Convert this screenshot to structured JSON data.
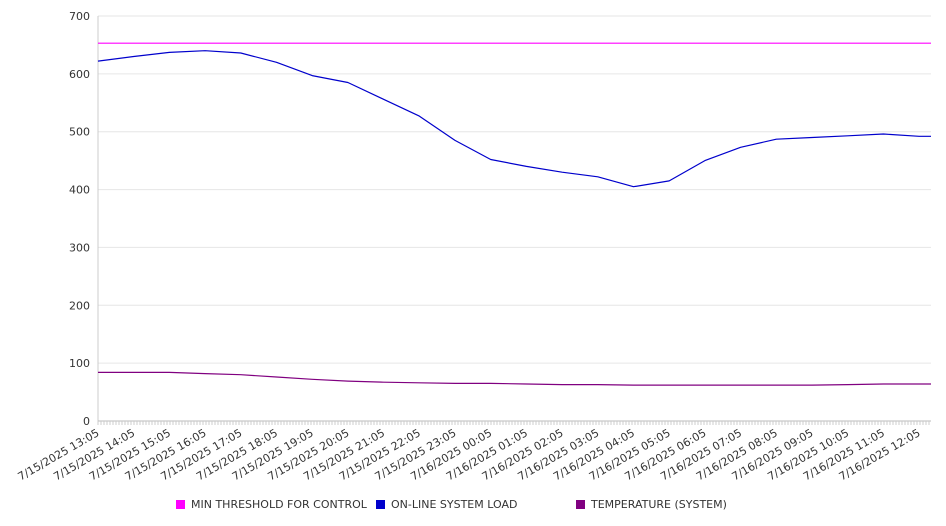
{
  "chart_data": {
    "type": "line",
    "title": "",
    "xlabel": "",
    "ylabel": "",
    "ylim": [
      0,
      700
    ],
    "yticks": [
      0,
      100,
      200,
      300,
      400,
      500,
      600,
      700
    ],
    "grid": true,
    "legend_position": "bottom",
    "categories": [
      "7/15/2025 13:05",
      "7/15/2025 14:05",
      "7/15/2025 15:05",
      "7/15/2025 16:05",
      "7/15/2025 17:05",
      "7/15/2025 18:05",
      "7/15/2025 19:05",
      "7/15/2025 20:05",
      "7/15/2025 21:05",
      "7/15/2025 22:05",
      "7/15/2025 23:05",
      "7/16/2025 00:05",
      "7/16/2025 01:05",
      "7/16/2025 02:05",
      "7/16/2025 03:05",
      "7/16/2025 04:05",
      "7/16/2025 05:05",
      "7/16/2025 06:05",
      "7/16/2025 07:05",
      "7/16/2025 08:05",
      "7/16/2025 09:05",
      "7/16/2025 10:05",
      "7/16/2025 11:05",
      "7/16/2025 12:05"
    ],
    "series": [
      {
        "name": "MIN THRESHOLD FOR CONTROL",
        "color": "#ff00ff",
        "values": [
          653,
          653,
          653,
          653,
          653,
          653,
          653,
          653,
          653,
          653,
          653,
          653,
          653,
          653,
          653,
          653,
          653,
          653,
          653,
          653,
          653,
          653,
          653,
          653
        ]
      },
      {
        "name": "ON-LINE SYSTEM LOAD",
        "color": "#0000cc",
        "values": [
          622,
          630,
          637,
          640,
          636,
          620,
          597,
          585,
          556,
          527,
          485,
          452,
          440,
          430,
          422,
          405,
          415,
          450,
          473,
          487,
          490,
          493,
          496,
          492
        ]
      },
      {
        "name": "TEMPERATURE (SYSTEM)",
        "color": "#800080",
        "values": [
          84,
          84,
          84,
          82,
          80,
          76,
          72,
          69,
          67,
          66,
          65,
          65,
          64,
          63,
          63,
          62,
          62,
          62,
          62,
          62,
          62,
          63,
          64,
          64
        ]
      }
    ]
  }
}
